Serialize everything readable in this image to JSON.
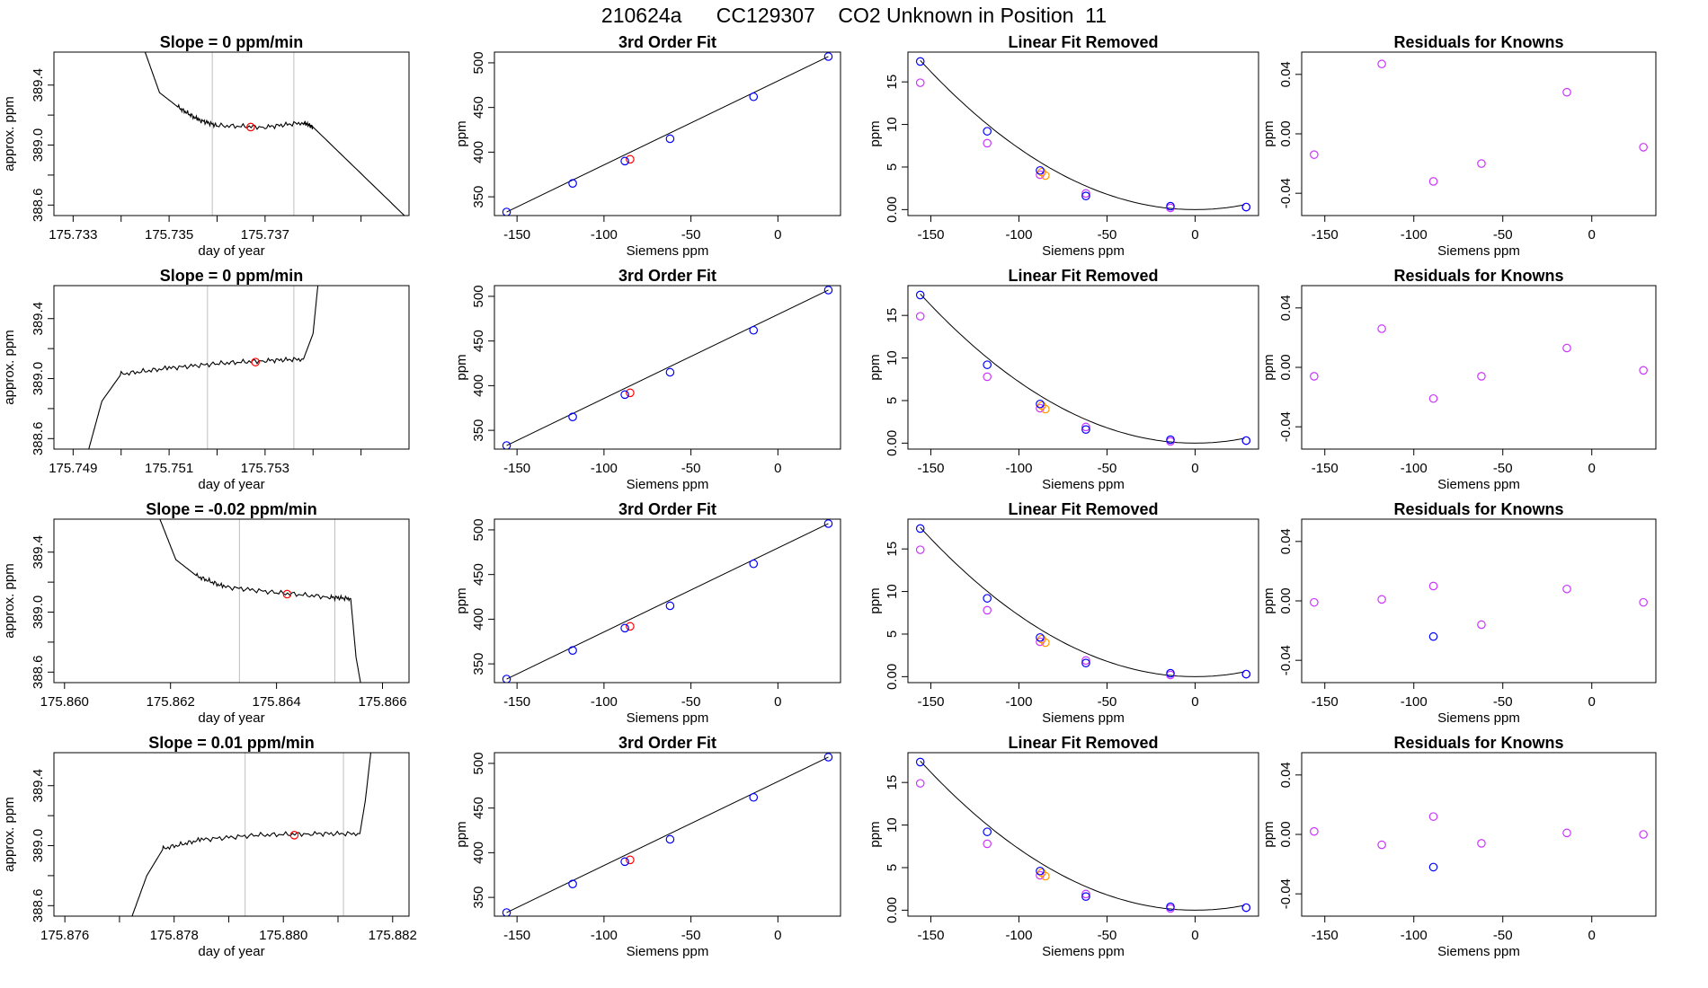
{
  "page_title": "210624a      CC129307    CO2 Unknown in Position  11",
  "colors": {
    "trace": "#000000",
    "grid_line": "#bfbfbf",
    "marker_red": "#ff0000",
    "marker_blue": "#0000ff",
    "marker_magenta": "#cc33ff",
    "marker_orange": "#ff9900"
  },
  "chart_data": [
    {
      "row": 1,
      "type": "line",
      "title": "Slope =  0  ppm/min",
      "xlabel": "day of year",
      "ylabel": "approx. ppm",
      "xlim": [
        175.7326,
        175.74
      ],
      "ylim": [
        388.53,
        389.62
      ],
      "xticks": [
        175.733,
        175.734,
        175.735,
        175.736,
        175.737,
        175.738,
        175.739
      ],
      "xtick_labels": [
        "175.733",
        "",
        "175.735",
        "",
        "175.737",
        "",
        ""
      ],
      "yticks": [
        388.6,
        388.8,
        389.0,
        389.2,
        389.4
      ],
      "ytick_labels": [
        "388.6",
        "",
        "389.0",
        "",
        "389.4"
      ],
      "vlines": [
        175.7359,
        175.7376
      ],
      "marker": {
        "x": 175.7367,
        "y": 389.12
      },
      "trace": [
        [
          175.7345,
          389.62
        ],
        [
          175.7348,
          389.35
        ],
        [
          175.7352,
          389.25
        ],
        [
          175.7356,
          389.17
        ],
        [
          175.736,
          389.13
        ],
        [
          175.737,
          389.12
        ],
        [
          175.7378,
          389.15
        ],
        [
          175.738,
          389.12
        ],
        [
          175.74,
          388.5
        ]
      ]
    },
    {
      "row": 1,
      "type": "line",
      "title": "3rd Order Fit",
      "xlabel": "Siemens ppm",
      "ylabel": "ppm",
      "xlim": [
        -163,
        36
      ],
      "ylim": [
        329,
        512
      ],
      "xticks": [
        -150,
        -100,
        -50,
        0
      ],
      "yticks": [
        350,
        400,
        450,
        500
      ],
      "points_blue": [
        [
          -156,
          333
        ],
        [
          -118,
          365
        ],
        [
          -88,
          390
        ],
        [
          -62,
          415
        ],
        [
          -14,
          462
        ],
        [
          29,
          507
        ]
      ],
      "points_red": [
        [
          -85,
          392
        ]
      ]
    },
    {
      "row": 1,
      "type": "scatter",
      "title": "Linear Fit Removed",
      "xlabel": "Siemens ppm",
      "ylabel": "ppm",
      "xlim": [
        -163,
        36
      ],
      "ylim": [
        -0.7,
        18.5
      ],
      "xticks": [
        -150,
        -100,
        -50,
        0
      ],
      "yticks": [
        0,
        5,
        10,
        15
      ],
      "points_blue": [
        [
          -156,
          17.4
        ],
        [
          -118,
          9.2
        ],
        [
          -88,
          4.6
        ],
        [
          -62,
          1.6
        ],
        [
          -14,
          0.4
        ],
        [
          29,
          0.3
        ]
      ],
      "points_magenta": [
        [
          -156,
          14.9
        ],
        [
          -118,
          7.8
        ],
        [
          -88,
          4.1
        ],
        [
          -62,
          1.9
        ],
        [
          -14,
          0.2
        ],
        [
          29,
          0.3
        ]
      ],
      "points_orange": [
        [
          -85,
          4.0
        ],
        [
          -87,
          4.4
        ]
      ]
    },
    {
      "row": 1,
      "type": "scatter",
      "title": "Residuals for Knowns",
      "xlabel": "Siemens ppm",
      "ylabel": "ppm",
      "xlim": [
        -163,
        36
      ],
      "ylim": [
        -0.055,
        0.055
      ],
      "xticks": [
        -150,
        -100,
        -50,
        0
      ],
      "yticks": [
        -0.04,
        0.0,
        0.04
      ],
      "points_magenta": [
        [
          -156,
          -0.014
        ],
        [
          -118,
          0.047
        ],
        [
          -89,
          -0.032
        ],
        [
          -62,
          -0.02
        ],
        [
          -14,
          0.028
        ],
        [
          29,
          -0.009
        ]
      ],
      "points_blue": []
    },
    {
      "row": 2,
      "type": "line",
      "title": "Slope =  0  ppm/min",
      "xlabel": "day of year",
      "ylabel": "approx. ppm",
      "xlim": [
        175.7486,
        175.756
      ],
      "ylim": [
        388.53,
        389.62
      ],
      "xticks": [
        175.749,
        175.75,
        175.751,
        175.752,
        175.753,
        175.754,
        175.755
      ],
      "xtick_labels": [
        "175.749",
        "",
        "175.751",
        "",
        "175.753",
        "",
        ""
      ],
      "yticks": [
        388.6,
        388.8,
        389.0,
        389.2,
        389.4
      ],
      "ytick_labels": [
        "388.6",
        "",
        "389.0",
        "",
        "389.4"
      ],
      "vlines": [
        175.7518,
        175.7536
      ],
      "marker": {
        "x": 175.7528,
        "y": 389.11
      },
      "trace": [
        [
          175.7493,
          388.5
        ],
        [
          175.7496,
          388.85
        ],
        [
          175.75,
          389.03
        ],
        [
          175.751,
          389.07
        ],
        [
          175.752,
          389.1
        ],
        [
          175.753,
          389.12
        ],
        [
          175.7538,
          389.13
        ],
        [
          175.754,
          389.3
        ],
        [
          175.7541,
          389.62
        ]
      ]
    },
    {
      "row": 2,
      "type": "line",
      "title": "3rd Order Fit",
      "xlabel": "Siemens ppm",
      "ylabel": "ppm",
      "xlim": [
        -163,
        36
      ],
      "ylim": [
        329,
        512
      ],
      "xticks": [
        -150,
        -100,
        -50,
        0
      ],
      "yticks": [
        350,
        400,
        450,
        500
      ],
      "points_blue": [
        [
          -156,
          333
        ],
        [
          -118,
          365
        ],
        [
          -88,
          390
        ],
        [
          -62,
          415
        ],
        [
          -14,
          462
        ],
        [
          29,
          507
        ]
      ],
      "points_red": [
        [
          -85,
          392
        ]
      ]
    },
    {
      "row": 2,
      "type": "scatter",
      "title": "Linear Fit Removed",
      "xlabel": "Siemens ppm",
      "ylabel": "ppm",
      "xlim": [
        -163,
        36
      ],
      "ylim": [
        -0.7,
        18.5
      ],
      "xticks": [
        -150,
        -100,
        -50,
        0
      ],
      "yticks": [
        0,
        5,
        10,
        15
      ],
      "points_blue": [
        [
          -156,
          17.4
        ],
        [
          -118,
          9.2
        ],
        [
          -88,
          4.6
        ],
        [
          -62,
          1.6
        ],
        [
          -14,
          0.4
        ],
        [
          29,
          0.3
        ]
      ],
      "points_magenta": [
        [
          -156,
          14.9
        ],
        [
          -118,
          7.8
        ],
        [
          -88,
          4.1
        ],
        [
          -62,
          1.9
        ],
        [
          -14,
          0.2
        ],
        [
          29,
          0.3
        ]
      ],
      "points_orange": [
        [
          -85,
          4.0
        ],
        [
          -87,
          4.4
        ]
      ]
    },
    {
      "row": 2,
      "type": "scatter",
      "title": "Residuals for Knowns",
      "xlabel": "Siemens ppm",
      "ylabel": "ppm",
      "xlim": [
        -163,
        36
      ],
      "ylim": [
        -0.055,
        0.055
      ],
      "xticks": [
        -150,
        -100,
        -50,
        0
      ],
      "yticks": [
        -0.04,
        0.0,
        0.04
      ],
      "points_magenta": [
        [
          -156,
          -0.006
        ],
        [
          -118,
          0.026
        ],
        [
          -89,
          -0.021
        ],
        [
          -62,
          -0.006
        ],
        [
          -14,
          0.013
        ],
        [
          29,
          -0.002
        ]
      ],
      "points_blue": []
    },
    {
      "row": 3,
      "type": "line",
      "title": "Slope =  -0.02  ppm/min",
      "xlabel": "day of year",
      "ylabel": "approx. ppm",
      "xlim": [
        175.8598,
        175.8665
      ],
      "ylim": [
        388.53,
        389.62
      ],
      "xticks": [
        175.86,
        175.862,
        175.864,
        175.866
      ],
      "xtick_labels": [
        "175.860",
        "175.862",
        "175.864",
        "175.866"
      ],
      "yticks": [
        388.6,
        388.8,
        389.0,
        389.2,
        389.4
      ],
      "ytick_labels": [
        "388.6",
        "",
        "389.0",
        "",
        "389.4"
      ],
      "vlines": [
        175.8633,
        175.8651
      ],
      "marker": {
        "x": 175.8642,
        "y": 389.12
      },
      "trace": [
        [
          175.8618,
          389.62
        ],
        [
          175.8621,
          389.35
        ],
        [
          175.8625,
          389.24
        ],
        [
          175.863,
          389.17
        ],
        [
          175.864,
          389.13
        ],
        [
          175.865,
          389.1
        ],
        [
          175.8654,
          389.09
        ],
        [
          175.8655,
          388.7
        ],
        [
          175.8656,
          388.5
        ]
      ]
    },
    {
      "row": 3,
      "type": "line",
      "title": "3rd Order Fit",
      "xlabel": "Siemens ppm",
      "ylabel": "ppm",
      "xlim": [
        -163,
        36
      ],
      "ylim": [
        329,
        512
      ],
      "xticks": [
        -150,
        -100,
        -50,
        0
      ],
      "yticks": [
        350,
        400,
        450,
        500
      ],
      "points_blue": [
        [
          -156,
          333
        ],
        [
          -118,
          365
        ],
        [
          -88,
          390
        ],
        [
          -62,
          415
        ],
        [
          -14,
          462
        ],
        [
          29,
          507
        ]
      ],
      "points_red": [
        [
          -85,
          392
        ]
      ]
    },
    {
      "row": 3,
      "type": "scatter",
      "title": "Linear Fit Removed",
      "xlabel": "Siemens ppm",
      "ylabel": "ppm",
      "xlim": [
        -163,
        36
      ],
      "ylim": [
        -0.7,
        18.5
      ],
      "xticks": [
        -150,
        -100,
        -50,
        0
      ],
      "yticks": [
        0,
        5,
        10,
        15
      ],
      "points_blue": [
        [
          -156,
          17.4
        ],
        [
          -118,
          9.2
        ],
        [
          -88,
          4.6
        ],
        [
          -62,
          1.6
        ],
        [
          -14,
          0.4
        ],
        [
          29,
          0.3
        ]
      ],
      "points_magenta": [
        [
          -156,
          14.9
        ],
        [
          -118,
          7.8
        ],
        [
          -88,
          4.1
        ],
        [
          -62,
          1.9
        ],
        [
          -14,
          0.2
        ],
        [
          29,
          0.3
        ]
      ],
      "points_orange": [
        [
          -85,
          4.0
        ],
        [
          -87,
          4.4
        ]
      ]
    },
    {
      "row": 3,
      "type": "scatter",
      "title": "Residuals for Knowns",
      "xlabel": "Siemens ppm",
      "ylabel": "ppm",
      "xlim": [
        -163,
        36
      ],
      "ylim": [
        -0.055,
        0.055
      ],
      "xticks": [
        -150,
        -100,
        -50,
        0
      ],
      "yticks": [
        -0.04,
        0.0,
        0.04
      ],
      "points_magenta": [
        [
          -156,
          -0.001
        ],
        [
          -118,
          0.001
        ],
        [
          -89,
          0.01
        ],
        [
          -62,
          -0.016
        ],
        [
          -14,
          0.008
        ],
        [
          29,
          -0.001
        ]
      ],
      "points_blue": [
        [
          -89,
          -0.024
        ]
      ]
    },
    {
      "row": 4,
      "type": "line",
      "title": "Slope =  0.01  ppm/min",
      "xlabel": "day of year",
      "ylabel": "approx. ppm",
      "xlim": [
        175.8758,
        175.8823
      ],
      "ylim": [
        388.53,
        389.62
      ],
      "xticks": [
        175.876,
        175.877,
        175.878,
        175.879,
        175.88,
        175.881,
        175.882
      ],
      "xtick_labels": [
        "175.876",
        "",
        "175.878",
        "",
        "175.880",
        "",
        "175.882"
      ],
      "yticks": [
        388.6,
        388.8,
        389.0,
        389.2,
        389.4
      ],
      "ytick_labels": [
        "388.6",
        "",
        "389.0",
        "",
        "389.4"
      ],
      "vlines": [
        175.8793,
        175.8811
      ],
      "marker": {
        "x": 175.8802,
        "y": 389.07
      },
      "trace": [
        [
          175.8772,
          388.5
        ],
        [
          175.8775,
          388.8
        ],
        [
          175.8778,
          388.98
        ],
        [
          175.8785,
          389.04
        ],
        [
          175.8795,
          389.07
        ],
        [
          175.8805,
          389.08
        ],
        [
          175.8814,
          389.08
        ],
        [
          175.8815,
          389.3
        ],
        [
          175.8816,
          389.62
        ]
      ]
    },
    {
      "row": 4,
      "type": "line",
      "title": "3rd Order Fit",
      "xlabel": "Siemens ppm",
      "ylabel": "ppm",
      "xlim": [
        -163,
        36
      ],
      "ylim": [
        329,
        512
      ],
      "xticks": [
        -150,
        -100,
        -50,
        0
      ],
      "yticks": [
        350,
        400,
        450,
        500
      ],
      "points_blue": [
        [
          -156,
          333
        ],
        [
          -118,
          365
        ],
        [
          -88,
          390
        ],
        [
          -62,
          415
        ],
        [
          -14,
          462
        ],
        [
          29,
          507
        ]
      ],
      "points_red": [
        [
          -85,
          392
        ]
      ]
    },
    {
      "row": 4,
      "type": "scatter",
      "title": "Linear Fit Removed",
      "xlabel": "Siemens ppm",
      "ylabel": "ppm",
      "xlim": [
        -163,
        36
      ],
      "ylim": [
        -0.7,
        18.5
      ],
      "xticks": [
        -150,
        -100,
        -50,
        0
      ],
      "yticks": [
        0,
        5,
        10,
        15
      ],
      "points_blue": [
        [
          -156,
          17.4
        ],
        [
          -118,
          9.2
        ],
        [
          -88,
          4.6
        ],
        [
          -62,
          1.6
        ],
        [
          -14,
          0.4
        ],
        [
          29,
          0.3
        ]
      ],
      "points_magenta": [
        [
          -156,
          14.9
        ],
        [
          -118,
          7.8
        ],
        [
          -88,
          4.1
        ],
        [
          -62,
          1.9
        ],
        [
          -14,
          0.2
        ],
        [
          29,
          0.3
        ]
      ],
      "points_orange": [
        [
          -85,
          4.0
        ],
        [
          -87,
          4.4
        ]
      ]
    },
    {
      "row": 4,
      "type": "scatter",
      "title": "Residuals for Knowns",
      "xlabel": "Siemens ppm",
      "ylabel": "ppm",
      "xlim": [
        -163,
        36
      ],
      "ylim": [
        -0.055,
        0.055
      ],
      "xticks": [
        -150,
        -100,
        -50,
        0
      ],
      "yticks": [
        -0.04,
        0.0,
        0.04
      ],
      "points_magenta": [
        [
          -156,
          0.002
        ],
        [
          -118,
          -0.007
        ],
        [
          -89,
          0.012
        ],
        [
          -62,
          -0.006
        ],
        [
          -14,
          0.001
        ],
        [
          29,
          0.0
        ]
      ],
      "points_blue": [
        [
          -89,
          -0.022
        ]
      ]
    }
  ]
}
